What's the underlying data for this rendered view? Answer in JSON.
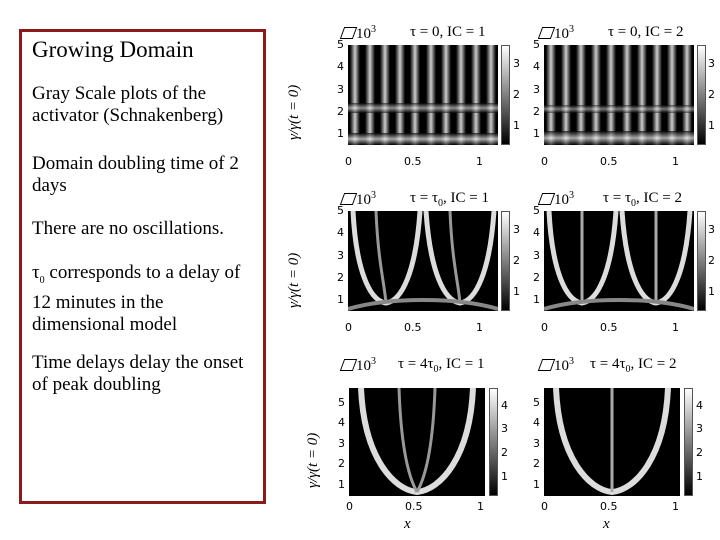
{
  "left_box": {
    "title": "Growing Domain",
    "p1": "Gray Scale plots of the activator (Schnakenberg)",
    "p2": "Domain doubling time of 2 days",
    "p3": "There are no oscillations.",
    "p4_prefix": "τ",
    "p4_sub": "0",
    "p4_rest": " corresponds to a delay of 12 minutes in the dimensional model",
    "p5": "Time delays delay the onset of peak doubling"
  },
  "panels": [
    {
      "title": "τ = 0, IC = 1",
      "scale": "10",
      "scale_exp": "3",
      "cbar_ticks": [
        "3",
        "2",
        "1"
      ],
      "yticks": [
        "5",
        "4",
        "3",
        "2",
        "1"
      ],
      "xticks": [
        "0",
        "0.5",
        "1"
      ]
    },
    {
      "title": "τ = 0, IC = 2",
      "scale": "10",
      "scale_exp": "3",
      "cbar_ticks": [
        "3",
        "2",
        "1"
      ],
      "yticks": [
        "5",
        "4",
        "3",
        "2",
        "1"
      ],
      "xticks": [
        "0",
        "0.5",
        "1"
      ]
    },
    {
      "title_a": "τ = τ",
      "title_sub": "0",
      "title_b": ", IC = 1",
      "scale": "10",
      "scale_exp": "3",
      "cbar_ticks": [
        "3",
        "2",
        "1"
      ],
      "yticks": [
        "5",
        "4",
        "3",
        "2",
        "1"
      ],
      "xticks": [
        "0",
        "0.5",
        "1"
      ]
    },
    {
      "title_a": "τ = τ",
      "title_sub": "0",
      "title_b": ", IC = 2",
      "scale": "10",
      "scale_exp": "3",
      "cbar_ticks": [
        "3",
        "2",
        "1"
      ],
      "yticks": [
        "5",
        "4",
        "3",
        "2",
        "1"
      ],
      "xticks": [
        "0",
        "0.5",
        "1"
      ]
    },
    {
      "title_a": "τ = 4τ",
      "title_sub": "0",
      "title_b": ", IC = 1",
      "scale": "10",
      "scale_exp": "3",
      "cbar_ticks": [
        "4",
        "3",
        "2",
        "1"
      ],
      "yticks": [
        "5",
        "4",
        "3",
        "2",
        "1"
      ],
      "xticks": [
        "0",
        "0.5",
        "1"
      ]
    },
    {
      "title_a": "τ = 4τ",
      "title_sub": "0",
      "title_b": ", IC = 2",
      "scale": "10",
      "scale_exp": "3",
      "cbar_ticks": [
        "4",
        "3",
        "2",
        "1"
      ],
      "yticks": [
        "5",
        "4",
        "3",
        "2",
        "1"
      ],
      "xticks": [
        "0",
        "0.5",
        "1"
      ]
    }
  ],
  "ylabel": "γ/γ(t = 0)",
  "xlabel": "x",
  "colors": {
    "border": "#8b1a1a"
  }
}
